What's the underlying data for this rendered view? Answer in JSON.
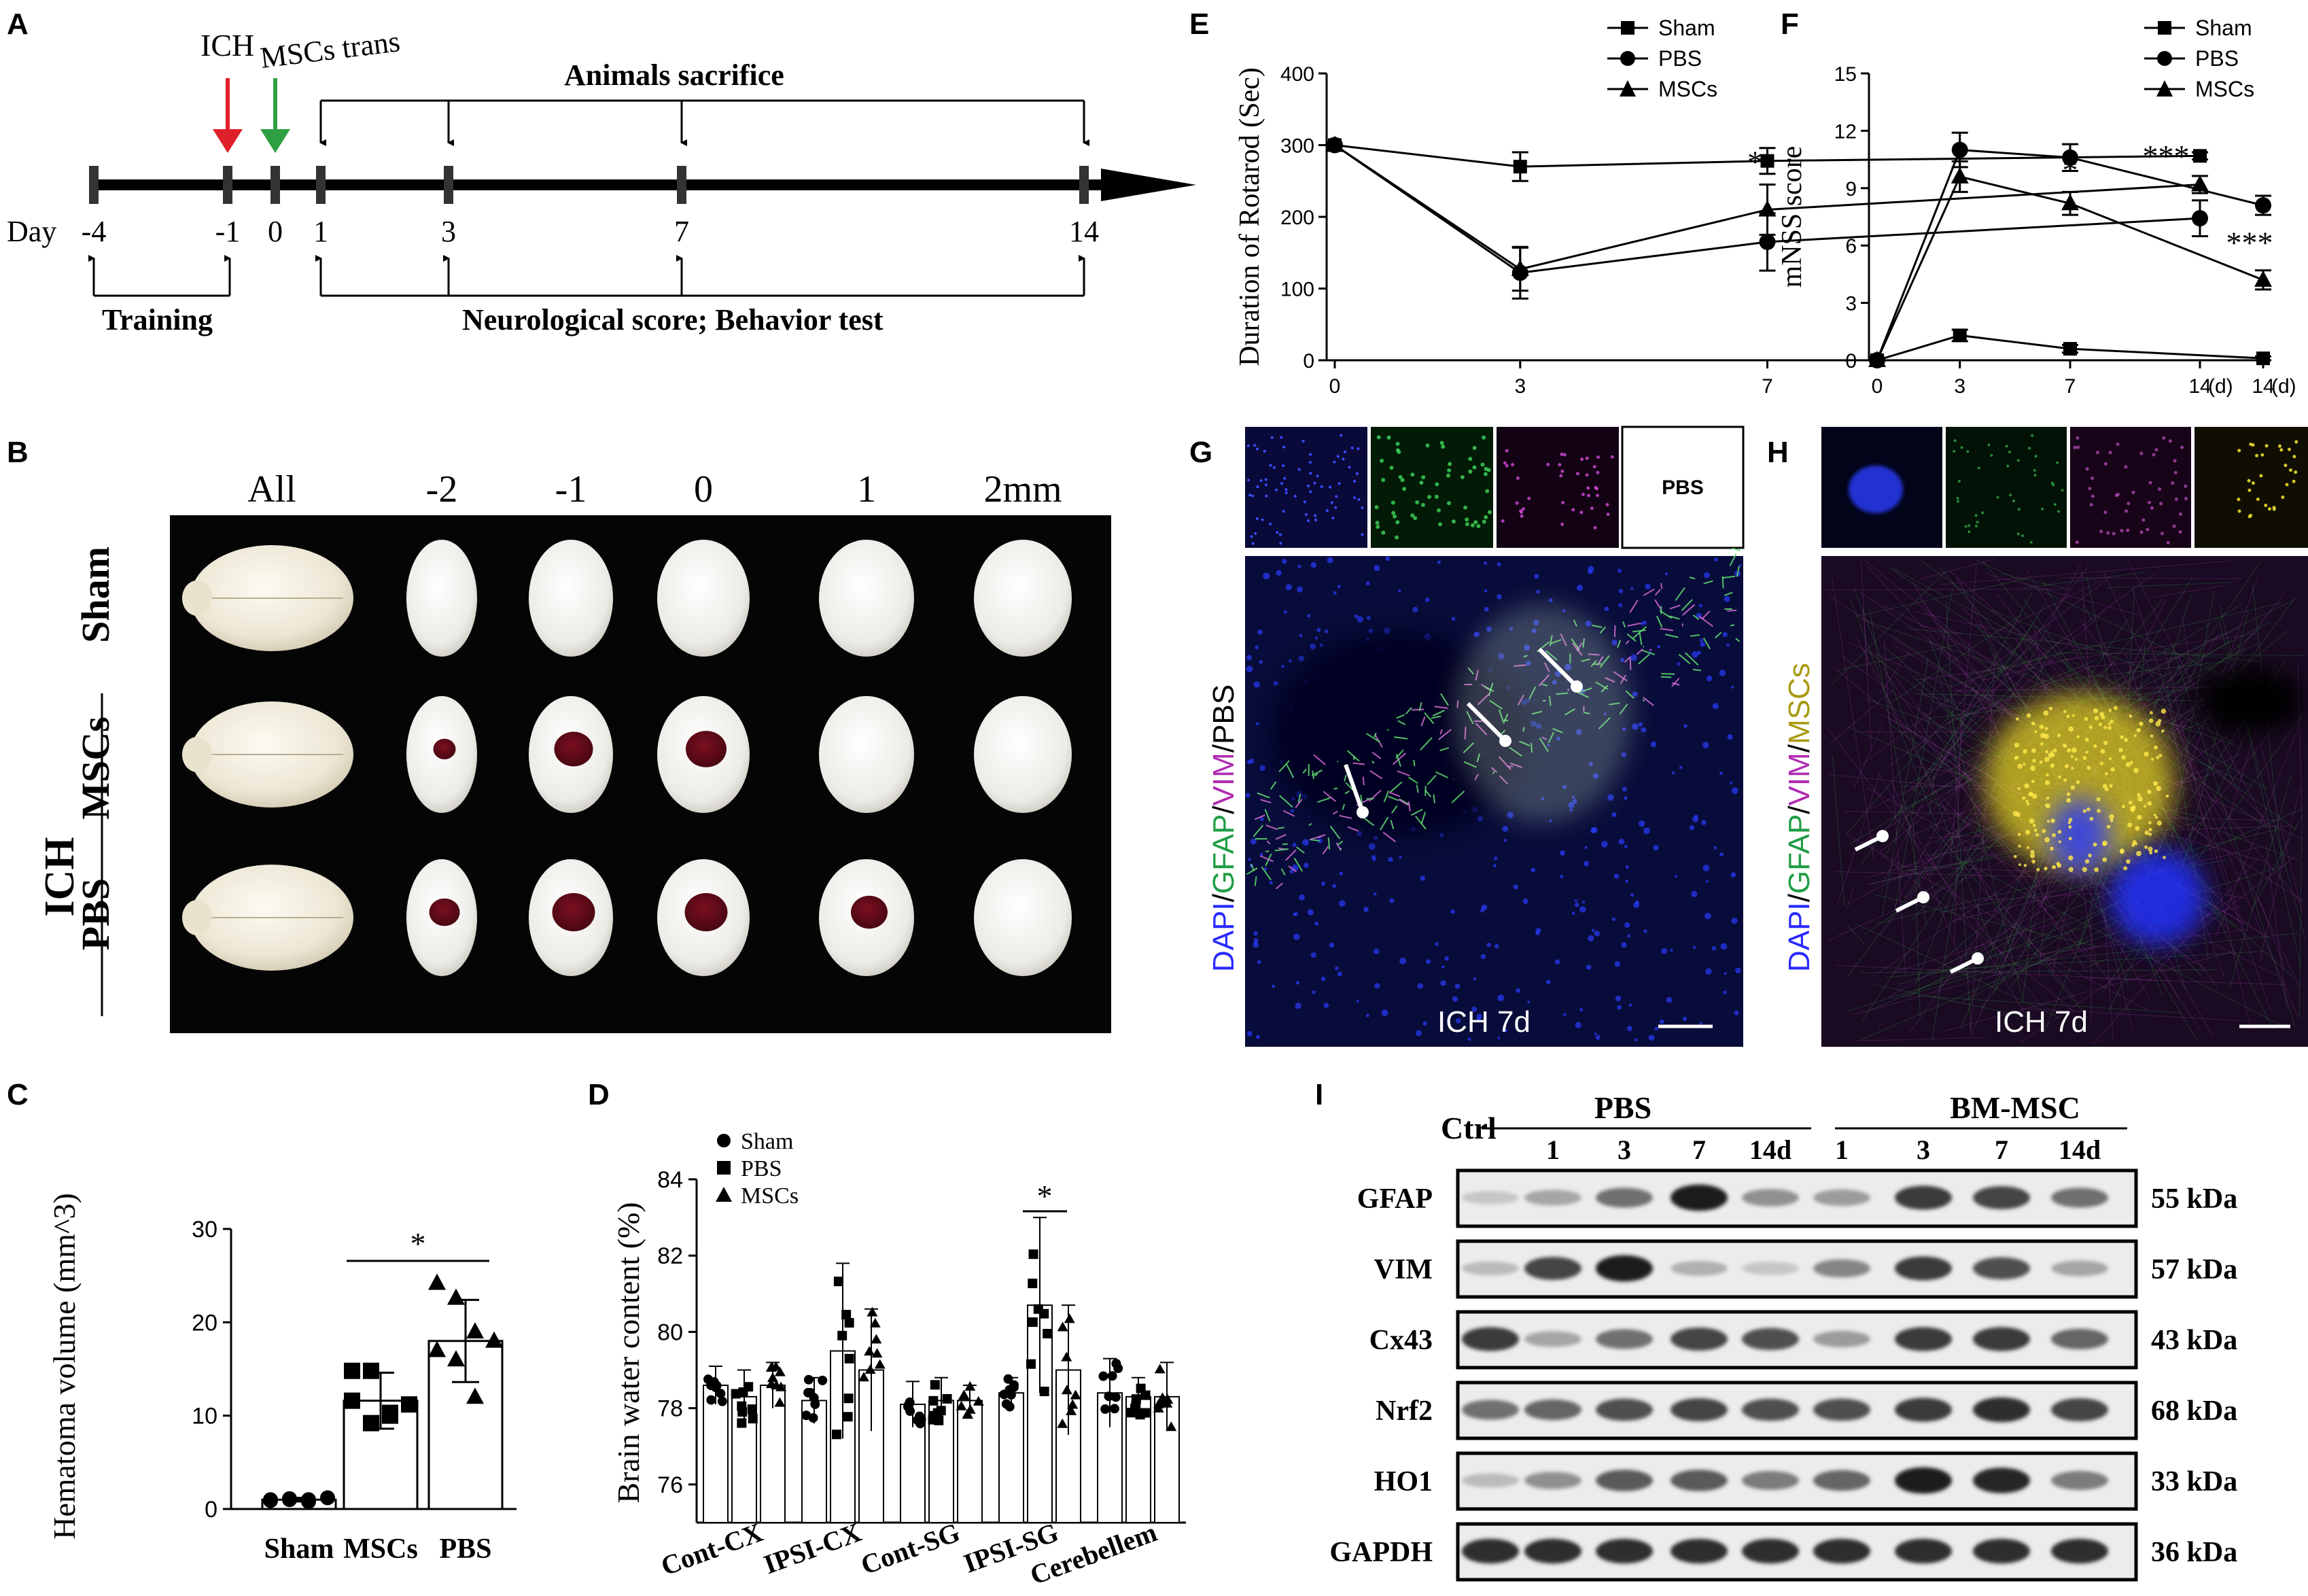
{
  "figure": {
    "panel_letters": [
      "A",
      "B",
      "C",
      "D",
      "E",
      "F",
      "G",
      "H",
      "I"
    ]
  },
  "panel_a": {
    "day_label": "Day",
    "days": [
      "-4",
      "-1",
      "0",
      "1",
      "3",
      "7",
      "14"
    ],
    "ich_label": "ICH",
    "msc_label": "MSCs trans",
    "sacrifice_label": "Animals sacrifice",
    "training_label": "Training",
    "score_label": "Neurological score; Behavior test",
    "colors": {
      "ich_arrow": "#e0202a",
      "msc_arrow": "#2ea043"
    }
  },
  "panel_b": {
    "columns": [
      "All",
      "-2",
      "-1",
      "0",
      "1",
      "2mm"
    ],
    "rows": [
      "Sham",
      "MSCs",
      "PBS"
    ],
    "ich_label": "ICH"
  },
  "panel_e": {
    "legend": [
      "Sham",
      "PBS",
      "MSCs"
    ],
    "stars_day7": "*",
    "stars_day14": "***"
  },
  "panel_f": {
    "legend": [
      "Sham",
      "PBS",
      "MSCs"
    ],
    "stars_day7": "*",
    "stars_day14": "***"
  },
  "panel_c": {
    "star": "*"
  },
  "panel_d": {
    "star": "*"
  },
  "chart_data": [
    {
      "panel": "C",
      "type": "bar",
      "ylabel": "Hematoma volume (mm^3)",
      "categories": [
        "Sham",
        "MSCs",
        "PBS"
      ],
      "values": [
        1.0,
        11.6,
        18.0
      ],
      "errors": [
        0.2,
        3.0,
        4.4
      ],
      "points": [
        [
          1.0,
          1.1,
          1.0,
          1.2,
          0.9,
          1.0,
          0.8
        ],
        [
          14.8,
          14.8,
          10.3,
          11.2,
          11.6,
          9.2,
          10.0
        ],
        [
          24.2,
          22.6,
          19.0,
          18.0,
          17.0,
          16.0,
          12.0
        ]
      ],
      "ylim": [
        0,
        30
      ],
      "yticks": [
        "0",
        "10",
        "20",
        "30"
      ]
    },
    {
      "panel": "D",
      "type": "bar",
      "ylabel": "Brain water content (%)",
      "categories": [
        "Cont-CX",
        "IPSI-CX",
        "Cont-SG",
        "IPSI-SG",
        "Cerebellem"
      ],
      "series": [
        {
          "name": "Sham",
          "values": [
            78.6,
            78.2,
            78.1,
            78.4,
            78.4
          ],
          "errors": [
            0.5,
            0.6,
            0.6,
            0.4,
            0.9
          ]
        },
        {
          "name": "PBS",
          "values": [
            78.3,
            79.5,
            78.2,
            80.7,
            78.3
          ],
          "errors": [
            0.7,
            2.3,
            0.6,
            2.3,
            0.5
          ]
        },
        {
          "name": "MSCs",
          "values": [
            78.6,
            79.0,
            78.2,
            79.0,
            78.3
          ],
          "errors": [
            0.6,
            1.6,
            0.4,
            1.7,
            0.9
          ]
        }
      ],
      "ylim": [
        75,
        84
      ],
      "yticks": [
        "76",
        "78",
        "80",
        "82",
        "84"
      ]
    },
    {
      "panel": "E",
      "type": "line",
      "ylabel": "Duration of Rotarod (Sec)",
      "x": [
        0,
        3,
        7,
        14
      ],
      "xticks": [
        "0",
        "3",
        "7",
        "14"
      ],
      "xunit": "(d)",
      "series": [
        {
          "name": "Sham",
          "values": [
            300,
            270,
            278,
            285
          ],
          "errors": [
            0,
            20,
            18,
            5
          ]
        },
        {
          "name": "PBS",
          "values": [
            300,
            122,
            165,
            198
          ],
          "errors": [
            0,
            36,
            40,
            25
          ]
        },
        {
          "name": "MSCs",
          "values": [
            300,
            127,
            210,
            245
          ],
          "errors": [
            0,
            30,
            35,
            12
          ]
        }
      ],
      "ylim": [
        0,
        400
      ],
      "yticks": [
        "0",
        "100",
        "200",
        "300",
        "400"
      ]
    },
    {
      "panel": "F",
      "type": "line",
      "ylabel": "mNSS score",
      "x": [
        0,
        3,
        7,
        14
      ],
      "xticks": [
        "0",
        "3",
        "7",
        "14"
      ],
      "xunit": "(d)",
      "series": [
        {
          "name": "Sham",
          "values": [
            0,
            1.3,
            0.6,
            0.1
          ],
          "errors": [
            0,
            0.3,
            0.2,
            0.1
          ]
        },
        {
          "name": "PBS",
          "values": [
            0,
            11.0,
            10.6,
            8.1
          ],
          "errors": [
            0,
            0.9,
            0.7,
            0.5
          ]
        },
        {
          "name": "MSCs",
          "values": [
            0,
            9.6,
            8.2,
            4.2
          ],
          "errors": [
            0,
            0.8,
            0.6,
            0.5
          ]
        }
      ],
      "ylim": [
        0,
        15
      ],
      "yticks": [
        "0",
        "3",
        "6",
        "9",
        "12",
        "15"
      ]
    }
  ],
  "panel_g": {
    "side_label": [
      "DAPI",
      "/",
      "GFAP",
      "/",
      "VIM",
      "/",
      "PBS"
    ],
    "side_colors": [
      "#2a2aff",
      "#000000",
      "#1f9d45",
      "#000000",
      "#b02cb0",
      "#000000",
      "#000000"
    ],
    "pbs_box": "PBS",
    "caption": "ICH 7d"
  },
  "panel_h": {
    "side_label": [
      "DAPI",
      "/",
      "GFAP",
      "/",
      "VIM",
      "/",
      "MSCs"
    ],
    "side_colors": [
      "#2a2aff",
      "#000000",
      "#1f9d45",
      "#000000",
      "#b02cb0",
      "#000000",
      "#a89a12"
    ],
    "caption": "ICH 7d"
  },
  "panel_i": {
    "ctrl": "Ctrl",
    "pbs": "PBS",
    "bm": "BM-MSC",
    "lanes": [
      "1",
      "3",
      "7",
      "14d",
      "1",
      "3",
      "7",
      "14d"
    ],
    "proteins": [
      "GFAP",
      "VIM",
      "Cx43",
      "Nrf2",
      "HO1",
      "GAPDH"
    ],
    "sizes": [
      "55 kDa",
      "57 kDa",
      "43 kDa",
      "68 kDa",
      "33 kDa",
      "36 kDa"
    ],
    "intensity": [
      [
        0.15,
        0.3,
        0.55,
        0.95,
        0.4,
        0.35,
        0.8,
        0.75,
        0.55
      ],
      [
        0.2,
        0.75,
        0.95,
        0.25,
        0.15,
        0.45,
        0.8,
        0.7,
        0.3
      ],
      [
        0.8,
        0.3,
        0.55,
        0.75,
        0.7,
        0.35,
        0.8,
        0.8,
        0.6
      ],
      [
        0.55,
        0.6,
        0.7,
        0.75,
        0.7,
        0.7,
        0.8,
        0.85,
        0.75
      ],
      [
        0.2,
        0.4,
        0.65,
        0.65,
        0.5,
        0.6,
        0.95,
        0.9,
        0.5
      ],
      [
        0.85,
        0.85,
        0.85,
        0.85,
        0.85,
        0.85,
        0.85,
        0.85,
        0.85
      ]
    ]
  }
}
